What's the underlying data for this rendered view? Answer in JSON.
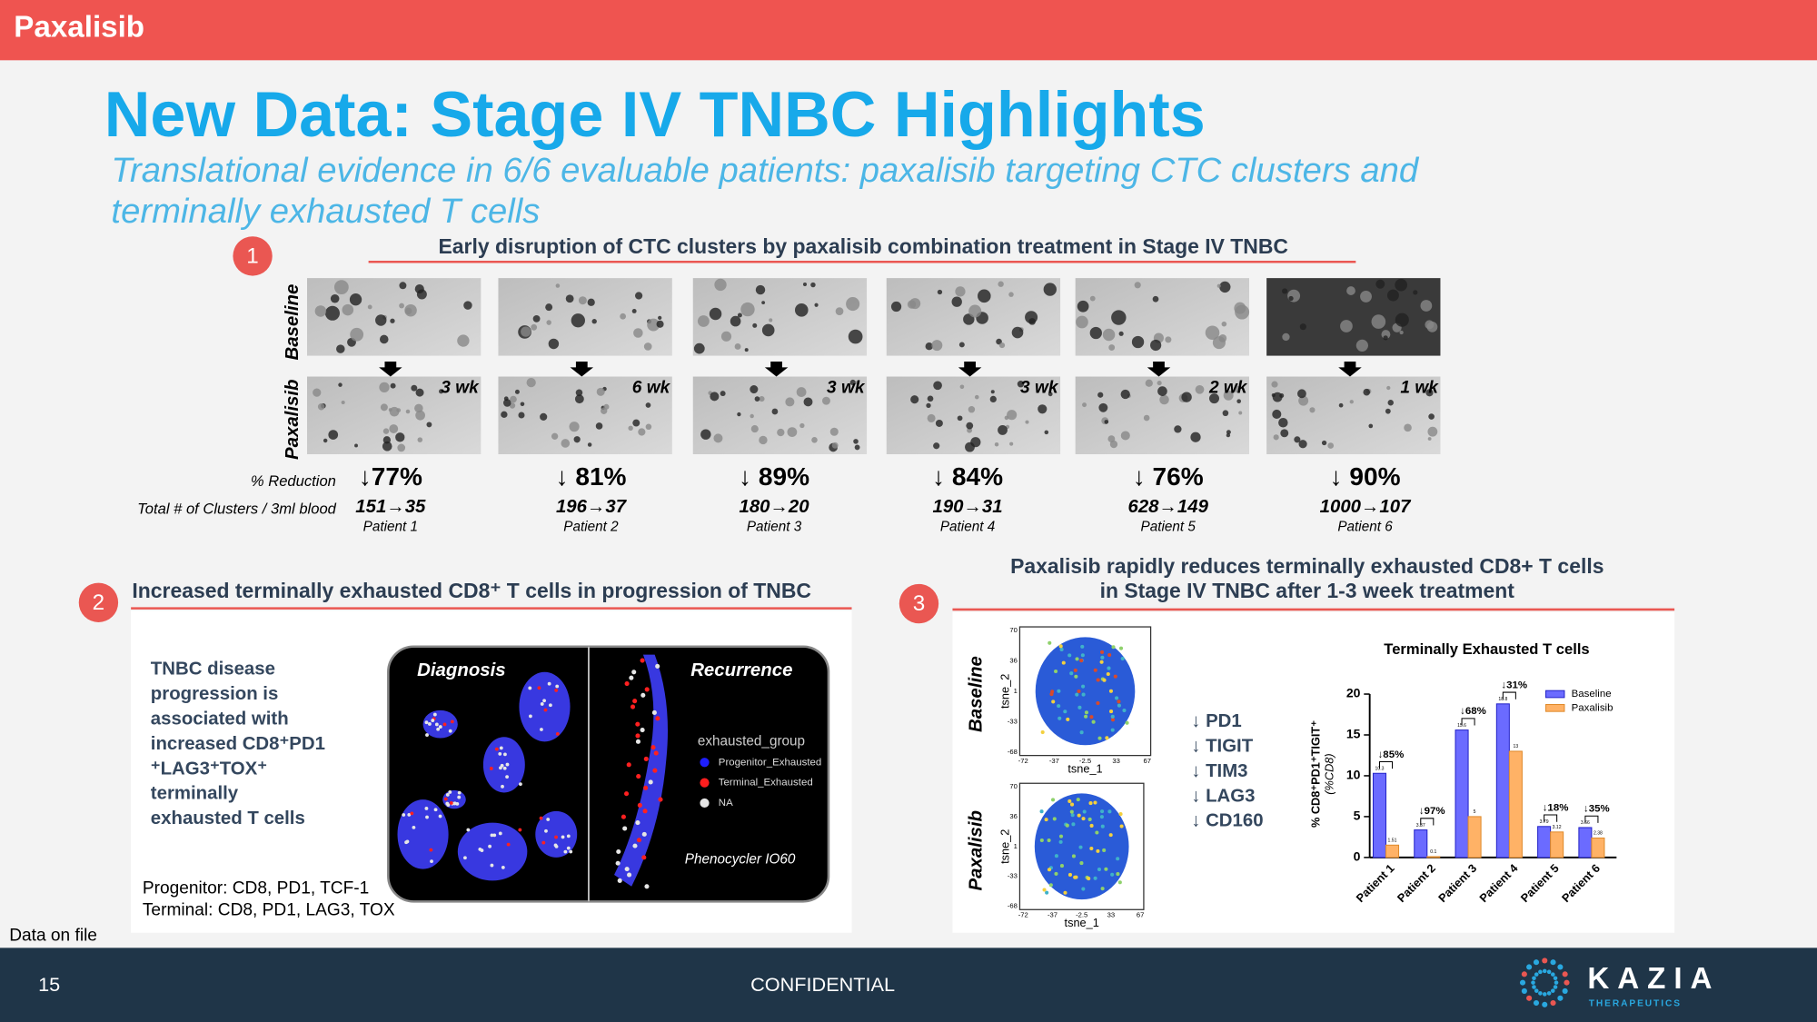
{
  "header": {
    "brand": "Paxalisib"
  },
  "title": "New Data: Stage IV TNBC Highlights",
  "subtitle": [
    "Translational evidence in 6/6 evaluable patients: paxalisib targeting CTC clusters and",
    "terminally exhausted T cells"
  ],
  "panel1": {
    "number": "1",
    "heading": "Early disruption of CTC clusters by paxalisib combination treatment in Stage IV TNBC",
    "row_labels": [
      "Baseline",
      "Paxalisib"
    ],
    "reduction_label": "% Reduction",
    "clusters_label": "Total # of Clusters / 3ml  blood",
    "patients": [
      {
        "name": "Patient 1",
        "duration": "3 wk",
        "reduction": "↓77%",
        "clusters": "151→35"
      },
      {
        "name": "Patient 2",
        "duration": "6 wk",
        "reduction": "↓ 81%",
        "clusters": "196→37"
      },
      {
        "name": "Patient 3",
        "duration": "3 wk",
        "reduction": "↓ 89%",
        "clusters": "180→20"
      },
      {
        "name": "Patient 4",
        "duration": "3 wk",
        "reduction": "↓ 84%",
        "clusters": "190→31"
      },
      {
        "name": "Patient 5",
        "duration": "2 wk",
        "reduction": "↓ 76%",
        "clusters": "628→149"
      },
      {
        "name": "Patient 6",
        "duration": "1 wk",
        "reduction": "↓ 90%",
        "clusters": "1000→107"
      }
    ]
  },
  "panel2": {
    "number": "2",
    "heading": "Increased terminally exhausted CD8⁺ T cells in progression of TNBC",
    "text": [
      "TNBC disease",
      "progression is",
      "associated with",
      "increased CD8⁺PD1",
      "⁺LAG3⁺TOX⁺",
      "terminally",
      "exhausted T cells"
    ],
    "images": [
      "Diagnosis",
      "Recurrence"
    ],
    "legend_title": "exhausted_group",
    "legend": [
      {
        "name": "Progenitor_Exhausted",
        "color": "#1e1eff"
      },
      {
        "name": "Terminal_Exhausted",
        "color": "#ff1e1e"
      },
      {
        "name": "NA",
        "color": "#e6e6e6"
      }
    ],
    "instrument": "Phenocycler IO60",
    "markers": [
      "Progenitor: CD8, PD1, TCF-1",
      "Terminal: CD8, PD1, LAG3, TOX"
    ]
  },
  "panel3": {
    "number": "3",
    "heading": [
      "Paxalisib rapidly reduces terminally exhausted CD8+ T cells",
      "in Stage IV TNBC after 1-3 week treatment"
    ],
    "row_labels": [
      "Baseline",
      "Paxalisib"
    ],
    "tsne": {
      "xlabel": "tsne_1",
      "ylabel": "tsne_2",
      "xticks": [
        "-72",
        "-37",
        "-2.5",
        "33",
        "67"
      ],
      "yticks": [
        "70",
        "36",
        "1",
        "-33",
        "-68"
      ]
    },
    "markers": [
      "↓ PD1",
      "↓ TIGIT",
      "↓ TIM3",
      "↓ LAG3",
      "↓ CD160"
    ],
    "chart_data": {
      "type": "bar",
      "title": "Terminally Exhausted T cells",
      "ylabel": [
        "% CD8⁺PD1⁺TIGIT⁺",
        "(%CD8)"
      ],
      "categories": [
        "Patient 1",
        "Patient 2",
        "Patient 3",
        "Patient 4",
        "Patient 5",
        "Patient 6"
      ],
      "series": [
        {
          "name": "Baseline",
          "color": "#6b6bff",
          "values": [
            10.3,
            3.37,
            15.6,
            18.8,
            3.79,
            3.66
          ]
        },
        {
          "name": "Paxalisib",
          "color": "#ffb266",
          "values": [
            1.51,
            0.1,
            5.0,
            13.0,
            3.12,
            2.38
          ]
        }
      ],
      "annotations": [
        "↓85%",
        "↓97%",
        "↓68%",
        "↓31%",
        "↓18%",
        "↓35%"
      ],
      "ylim": [
        0,
        20
      ],
      "yticks": [
        0,
        5,
        10,
        15,
        20
      ],
      "legend": "upper right"
    }
  },
  "footer": {
    "note": "Data on file",
    "page": "15",
    "confidential": "CONFIDENTIAL",
    "logo": "KAZIA",
    "logo_sub": "THERAPEUTICS"
  }
}
